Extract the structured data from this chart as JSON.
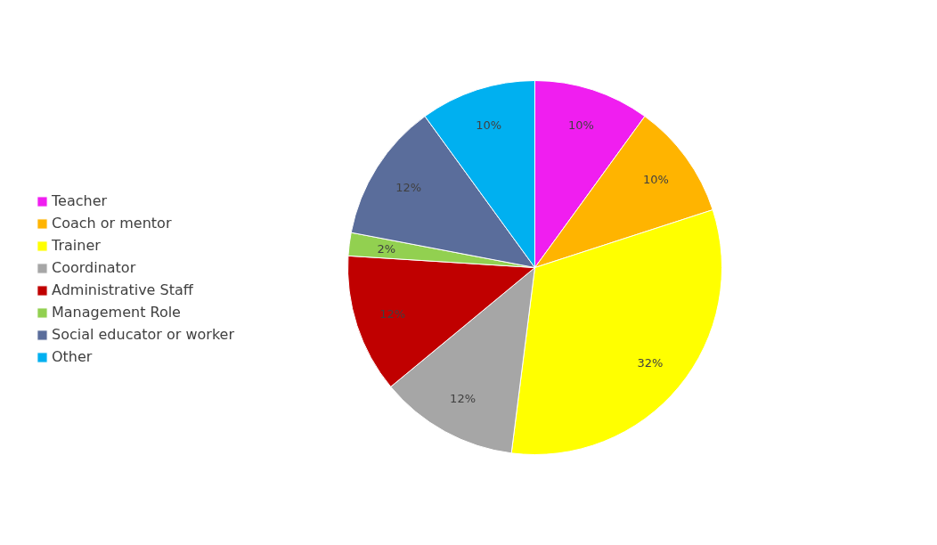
{
  "chart_data": {
    "type": "pie",
    "categories": [
      "Teacher",
      "Coach or mentor",
      "Trainer",
      "Coordinator",
      "Administrative Staff",
      "Management Role",
      "Social educator or worker",
      "Other"
    ],
    "values": [
      10,
      10,
      32,
      12,
      12,
      2,
      12,
      10
    ],
    "colors": [
      "#f01ef0",
      "#ffb400",
      "#ffff00",
      "#a6a6a6",
      "#c00000",
      "#92d050",
      "#5a6d9b",
      "#00b0f0"
    ],
    "value_labels": [
      "10%",
      "10%",
      "32%",
      "12%",
      "12%",
      "2%",
      "12%",
      "10%"
    ],
    "legend": "left"
  }
}
